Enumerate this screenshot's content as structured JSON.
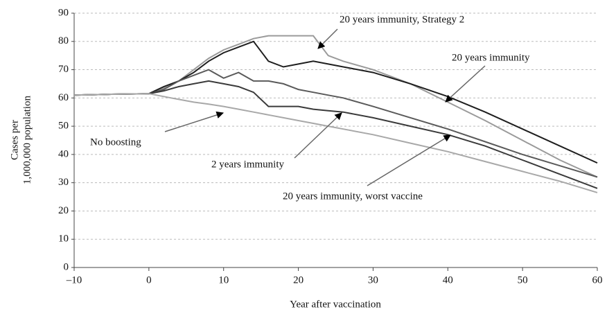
{
  "chart_data": {
    "type": "line",
    "ylabel": [
      "Cases per",
      "1,000,000 population"
    ],
    "xlabel": "Year after vaccination",
    "x": [
      -10,
      -5,
      0,
      2,
      4,
      6,
      8,
      10,
      12,
      14,
      16,
      18,
      20,
      22,
      24,
      26,
      30,
      35,
      40,
      45,
      50,
      55,
      60
    ],
    "series": [
      {
        "name": "20 years immunity, Strategy 2",
        "color": "#9a9a9a",
        "values": [
          61,
          61.3,
          61.5,
          63.5,
          66,
          70,
          74,
          77,
          79,
          81,
          82,
          82,
          82,
          82,
          75,
          73,
          70,
          65,
          58.5,
          52,
          45,
          38,
          32
        ]
      },
      {
        "name": "20 years immunity",
        "color": "#1e1e1e",
        "values": [
          61,
          61.3,
          61.5,
          64,
          66,
          69,
          73,
          76,
          78,
          80,
          73,
          71,
          72,
          73,
          72,
          71,
          69,
          65,
          60.5,
          55,
          49,
          43,
          37
        ]
      },
      {
        "name": "20 years immunity, worst vaccine",
        "color": "#5a5a5a",
        "values": [
          61,
          61.3,
          61.5,
          63,
          66,
          68,
          70,
          67,
          69,
          66,
          66,
          65,
          63,
          62,
          61,
          60,
          57,
          53,
          49,
          44.5,
          40,
          36,
          32
        ]
      },
      {
        "name": "2 years immunity",
        "color": "#3a3a3a",
        "values": [
          61,
          61.3,
          61.5,
          62.5,
          64,
          65,
          66,
          65,
          64,
          62,
          57,
          57,
          57,
          56,
          55.5,
          55,
          53,
          50,
          47,
          43,
          38,
          33,
          28
        ]
      },
      {
        "name": "No boosting",
        "color": "#a8a8a8",
        "values": [
          61,
          61.3,
          61.5,
          60.5,
          59.5,
          58.5,
          57.8,
          57,
          56,
          55,
          54,
          53,
          52,
          51,
          50,
          49,
          47,
          44,
          41,
          37.5,
          34,
          30.5,
          26.5
        ]
      }
    ],
    "xlim": [
      -10,
      60
    ],
    "xticks": [
      {
        "value": -10,
        "label": "–10"
      },
      0,
      10,
      20,
      30,
      40,
      50,
      60
    ],
    "ylim": [
      0,
      90
    ],
    "yticks": [
      0,
      10,
      20,
      30,
      40,
      50,
      60,
      70,
      80,
      90
    ],
    "grid": true
  }
}
